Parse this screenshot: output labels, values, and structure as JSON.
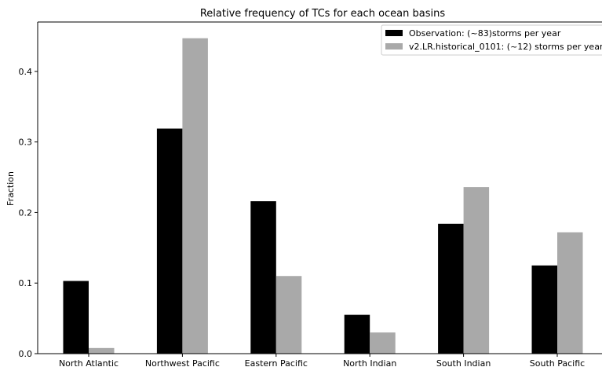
{
  "chart_data": {
    "type": "bar",
    "title": "Relative frequency of TCs for each ocean basins",
    "xlabel": "",
    "ylabel": "Fraction",
    "ylim": [
      0,
      0.47
    ],
    "yticks": [
      "0.0",
      "0.1",
      "0.2",
      "0.3",
      "0.4"
    ],
    "categories": [
      "North Atlantic",
      "Northwest Pacific",
      "Eastern Pacific",
      "North Indian",
      "South Indian",
      "South Pacific"
    ],
    "series": [
      {
        "name": "Observation: (~83)storms per year",
        "color": "#000000",
        "values": [
          0.103,
          0.319,
          0.216,
          0.055,
          0.184,
          0.125
        ]
      },
      {
        "name": "v2.LR.historical_0101: (~12) storms per year",
        "color": "#a9a9a9",
        "values": [
          0.008,
          0.447,
          0.11,
          0.03,
          0.236,
          0.172
        ]
      }
    ],
    "grid": false,
    "legend_position": "top-right"
  }
}
